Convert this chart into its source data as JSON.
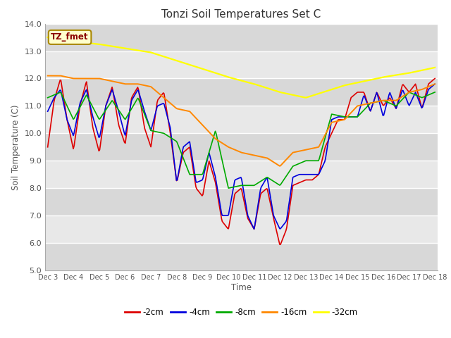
{
  "title": "Tonzi Soil Temperatures Set C",
  "xlabel": "Time",
  "ylabel": "Soil Temperature (C)",
  "ylim": [
    5.0,
    14.0
  ],
  "yticks": [
    5.0,
    6.0,
    7.0,
    8.0,
    9.0,
    10.0,
    11.0,
    12.0,
    13.0,
    14.0
  ],
  "ytick_labels": [
    "5.0",
    "6.0",
    "7.0",
    "8.0",
    "9.0",
    "10.0",
    "11.0",
    "12.0",
    "13.0",
    "14.0"
  ],
  "xtick_labels": [
    "Dec 3",
    "Dec 4",
    "Dec 5",
    "Dec 6",
    "Dec 7",
    "Dec 8",
    "Dec 9",
    "Dec 10",
    "Dec 11",
    "Dec 12",
    "Dec 13",
    "Dec 14",
    "Dec 15",
    "Dec 16",
    "Dec 17",
    "Dec 18"
  ],
  "series_colors": {
    "-2cm": "#dd0000",
    "-4cm": "#0000dd",
    "-8cm": "#00aa00",
    "-16cm": "#ff8800",
    "-32cm": "#ffff00"
  },
  "legend_label": "TZ_fmet",
  "figure_bg": "#ffffff",
  "plot_bg": "#e8e8e8",
  "grid_color": "#ffffff",
  "annotation_box_color": "#ffffcc",
  "annotation_text_color": "#8b0000",
  "annotation_border_color": "#aa8800",
  "key_t_2": [
    0,
    0.25,
    0.5,
    0.75,
    1.0,
    1.25,
    1.5,
    1.75,
    2.0,
    2.25,
    2.5,
    2.75,
    3.0,
    3.25,
    3.5,
    3.75,
    4.0,
    4.25,
    4.5,
    4.75,
    5.0,
    5.25,
    5.5,
    5.75,
    6.0,
    6.25,
    6.5,
    6.75,
    7.0,
    7.25,
    7.5,
    7.75,
    8.0,
    8.25,
    8.5,
    8.75,
    9.0,
    9.25,
    9.5,
    9.75,
    10.0,
    10.25,
    10.5,
    10.75,
    11.0,
    11.25,
    11.5,
    11.75,
    12.0,
    12.25,
    12.5,
    12.75,
    13.0,
    13.25,
    13.5,
    13.75,
    14.0,
    14.25,
    14.5,
    14.75,
    15.0
  ],
  "key_v_2": [
    9.5,
    11.2,
    12.0,
    10.5,
    9.4,
    11.0,
    11.9,
    10.2,
    9.3,
    11.0,
    11.7,
    10.3,
    9.6,
    11.3,
    11.7,
    10.2,
    9.5,
    11.2,
    11.5,
    10.0,
    8.2,
    9.3,
    9.5,
    8.0,
    7.7,
    9.0,
    8.2,
    6.8,
    6.5,
    7.8,
    8.0,
    6.9,
    6.5,
    7.8,
    8.0,
    6.9,
    5.9,
    6.5,
    8.1,
    8.2,
    8.3,
    8.3,
    8.5,
    9.5,
    10.0,
    10.5,
    10.5,
    11.3,
    11.5,
    11.5,
    10.8,
    11.5,
    11.0,
    11.3,
    10.9,
    11.8,
    11.5,
    11.8,
    10.9,
    11.8,
    12.0
  ],
  "key_t_4": [
    0,
    0.25,
    0.5,
    0.75,
    1.0,
    1.25,
    1.5,
    1.75,
    2.0,
    2.25,
    2.5,
    2.75,
    3.0,
    3.25,
    3.5,
    3.75,
    4.0,
    4.25,
    4.5,
    4.75,
    5.0,
    5.25,
    5.5,
    5.75,
    6.0,
    6.25,
    6.5,
    6.75,
    7.0,
    7.25,
    7.5,
    7.75,
    8.0,
    8.25,
    8.5,
    8.75,
    9.0,
    9.25,
    9.5,
    9.75,
    10.0,
    10.25,
    10.5,
    10.75,
    11.0,
    11.25,
    11.5,
    11.75,
    12.0,
    12.25,
    12.5,
    12.75,
    13.0,
    13.25,
    13.5,
    13.75,
    14.0,
    14.25,
    14.5,
    14.75,
    15.0
  ],
  "key_v_4": [
    10.8,
    11.3,
    11.6,
    10.5,
    9.9,
    11.1,
    11.6,
    10.6,
    9.8,
    11.0,
    11.6,
    10.8,
    9.9,
    11.2,
    11.6,
    10.8,
    10.1,
    11.0,
    11.1,
    10.2,
    8.2,
    9.5,
    9.7,
    8.2,
    8.3,
    9.3,
    8.4,
    7.0,
    7.0,
    8.3,
    8.4,
    7.0,
    6.5,
    8.0,
    8.4,
    7.0,
    6.5,
    6.8,
    8.4,
    8.5,
    8.5,
    8.5,
    8.5,
    9.0,
    10.5,
    10.6,
    10.6,
    10.6,
    10.6,
    11.4,
    10.8,
    11.5,
    10.6,
    11.5,
    10.9,
    11.6,
    11.0,
    11.5,
    10.9,
    11.6,
    11.8
  ],
  "key_t_8": [
    0,
    0.5,
    1.0,
    1.5,
    2.0,
    2.5,
    3.0,
    3.5,
    4.0,
    4.5,
    5.0,
    5.5,
    6.0,
    6.5,
    7.0,
    7.5,
    8.0,
    8.5,
    9.0,
    9.5,
    10.0,
    10.5,
    11.0,
    11.5,
    12.0,
    12.5,
    13.0,
    13.5,
    14.0,
    14.5,
    15.0
  ],
  "key_v_8": [
    11.3,
    11.5,
    10.5,
    11.4,
    10.5,
    11.2,
    10.5,
    11.3,
    10.1,
    10.0,
    9.7,
    8.5,
    8.5,
    10.1,
    8.0,
    8.1,
    8.1,
    8.4,
    8.1,
    8.8,
    9.0,
    9.0,
    10.7,
    10.6,
    10.6,
    11.1,
    11.2,
    11.0,
    11.5,
    11.3,
    11.5
  ],
  "key_t_16": [
    0,
    0.5,
    1.0,
    1.5,
    2.0,
    2.5,
    3.0,
    3.5,
    4.0,
    4.5,
    5.0,
    5.5,
    6.0,
    6.5,
    7.0,
    7.5,
    8.0,
    8.5,
    9.0,
    9.5,
    10.0,
    10.5,
    11.0,
    11.5,
    12.0,
    12.5,
    13.0,
    13.5,
    14.0,
    14.5,
    15.0
  ],
  "key_v_16": [
    12.1,
    12.1,
    12.0,
    12.0,
    12.0,
    11.9,
    11.8,
    11.8,
    11.7,
    11.3,
    10.9,
    10.8,
    10.3,
    9.8,
    9.5,
    9.3,
    9.2,
    9.1,
    8.8,
    9.3,
    9.4,
    9.5,
    10.4,
    10.5,
    11.0,
    11.1,
    11.2,
    11.2,
    11.5,
    11.6,
    11.8
  ],
  "key_t_32": [
    0,
    1.0,
    2.0,
    3.0,
    4.0,
    5.0,
    6.0,
    7.0,
    8.0,
    9.0,
    9.5,
    10.0,
    11.0,
    11.5,
    12.0,
    13.0,
    14.0,
    15.0
  ],
  "key_v_32": [
    13.5,
    13.35,
    13.25,
    13.1,
    12.95,
    12.65,
    12.35,
    12.05,
    11.8,
    11.5,
    11.4,
    11.3,
    11.6,
    11.75,
    11.85,
    12.05,
    12.2,
    12.4
  ]
}
